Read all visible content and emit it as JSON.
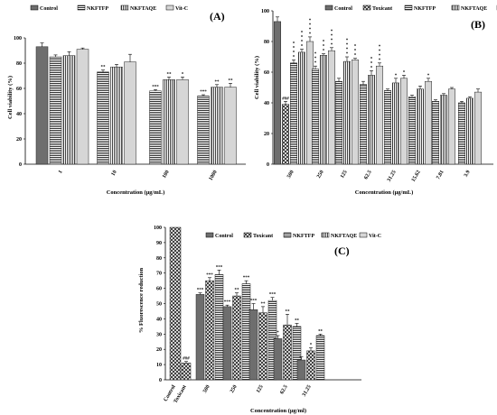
{
  "chart_data": [
    {
      "type": "bar",
      "panel_label": "(A)",
      "xlabel": "Concentration (μg/mL)",
      "ylabel": "Cell viability (%)",
      "ylim": [
        0,
        100
      ],
      "yticks": [
        "0",
        "20",
        "40",
        "60",
        "80",
        "100"
      ],
      "legend_position": "top",
      "categories": [
        "1",
        "10",
        "100",
        "1000"
      ],
      "series": [
        {
          "name": "Control",
          "pattern": "dark",
          "values": [
            93,
            null,
            null,
            null
          ],
          "errors": [
            3,
            null,
            null,
            null
          ],
          "stars": [
            "",
            null,
            null,
            null
          ]
        },
        {
          "name": "NKFTFP",
          "pattern": "hstripe",
          "values": [
            85,
            73,
            58,
            54
          ],
          "errors": [
            1.5,
            1.5,
            1,
            1
          ],
          "stars": [
            "",
            "**",
            "***",
            "***"
          ]
        },
        {
          "name": "NKFTAQE",
          "pattern": "vstripe",
          "values": [
            86,
            77,
            67,
            61
          ],
          "errors": [
            3,
            2,
            2,
            2
          ],
          "stars": [
            "",
            "",
            "**",
            "**"
          ]
        },
        {
          "name": "Vit-C",
          "pattern": "light",
          "values": [
            91,
            81,
            67,
            61
          ],
          "errors": [
            1,
            6,
            2,
            3
          ],
          "stars": [
            "",
            "",
            "*",
            "**"
          ]
        }
      ]
    },
    {
      "type": "bar",
      "panel_label": "(B)",
      "xlabel": "Concentration (μg/mL)",
      "ylabel": "Cell viability (%)",
      "ylim": [
        0,
        100
      ],
      "yticks": [
        "0",
        "20",
        "40",
        "60",
        "80",
        "100"
      ],
      "legend_position": "top",
      "categories": [
        "500",
        "250",
        "125",
        "62.5",
        "31.25",
        "15.62",
        "7.81",
        "3.9"
      ],
      "series": [
        {
          "name": "Control",
          "pattern": "dark",
          "values": [
            93,
            null,
            null,
            null,
            null,
            null,
            null,
            null
          ],
          "errors": [
            3,
            null,
            null,
            null,
            null,
            null,
            null,
            null
          ],
          "stars": [
            "",
            null,
            null,
            null,
            null,
            null,
            null,
            null
          ]
        },
        {
          "name": "Toxicant",
          "pattern": "cross",
          "values": [
            39,
            null,
            null,
            null,
            null,
            null,
            null,
            null
          ],
          "errors": [
            2,
            null,
            null,
            null,
            null,
            null,
            null,
            null
          ],
          "stars": [
            "###",
            null,
            null,
            null,
            null,
            null,
            null,
            null
          ]
        },
        {
          "name": "NKFTFP",
          "pattern": "hstripe",
          "values": [
            66,
            62,
            54,
            52,
            48,
            44,
            41,
            40
          ],
          "errors": [
            2,
            2,
            2,
            2,
            1,
            1,
            1,
            1
          ],
          "stars": [
            "* * * *",
            "* * *",
            "",
            "",
            "",
            "",
            "",
            ""
          ]
        },
        {
          "name": "NKFTAQE",
          "pattern": "vstripe",
          "values": [
            73,
            71,
            67,
            58,
            53,
            49,
            45,
            43
          ],
          "errors": [
            2,
            1,
            3,
            3,
            3,
            2,
            1,
            1
          ],
          "stars": [
            "* * * *",
            "* * *",
            "* * * *",
            "* * *",
            "*",
            "",
            "",
            ""
          ]
        },
        {
          "name": "Vit-C",
          "pattern": "light",
          "values": [
            80,
            74,
            68,
            64,
            56,
            54,
            49,
            47
          ],
          "errors": [
            3,
            2,
            1,
            2,
            2,
            2,
            1,
            2
          ],
          "stars": [
            "* * * *",
            "* * * *",
            "* * *",
            "* * * *",
            "*",
            "*",
            "",
            ""
          ]
        }
      ]
    },
    {
      "type": "bar",
      "panel_label": "(C)",
      "xlabel": "Concentration (μg/ml)",
      "ylabel": "% Fluorescence reduction",
      "ylim": [
        0,
        100
      ],
      "yticks": [
        "0",
        "10",
        "20",
        "30",
        "40",
        "50",
        "60",
        "70",
        "80",
        "90",
        "100"
      ],
      "legend_position": "top",
      "categories": [
        "Control",
        "Toxicant",
        "500",
        "250",
        "125",
        "62.5",
        "31.25"
      ],
      "series": [
        {
          "name": "Control",
          "pattern": "dark",
          "values": [
            null,
            null,
            56,
            48,
            46,
            27,
            13
          ],
          "errors": [
            null,
            null,
            1,
            1,
            4,
            2,
            2
          ],
          "stars": [
            null,
            null,
            "***",
            "***",
            "***",
            "*",
            ""
          ]
        },
        {
          "name": "Toxicant",
          "pattern": "cross",
          "values": [
            100,
            11,
            65,
            55,
            44,
            36,
            19
          ],
          "errors": [
            0,
            1,
            2,
            2,
            4,
            7,
            2
          ],
          "stars": [
            "",
            "###",
            "***",
            "**",
            "**",
            "**",
            "*"
          ]
        },
        {
          "name": "NKFTFP",
          "pattern": "hstripe",
          "values": [
            null,
            null,
            69,
            63,
            52,
            35,
            29
          ],
          "errors": [
            null,
            null,
            3,
            2,
            2,
            2,
            1
          ],
          "stars": [
            null,
            null,
            "***",
            "***",
            "***",
            "**",
            "**"
          ]
        }
      ],
      "legend_only_series": [
        {
          "name": "NKFTAQE",
          "pattern": "vstripe"
        },
        {
          "name": "Vit-C",
          "pattern": "light"
        }
      ]
    }
  ]
}
